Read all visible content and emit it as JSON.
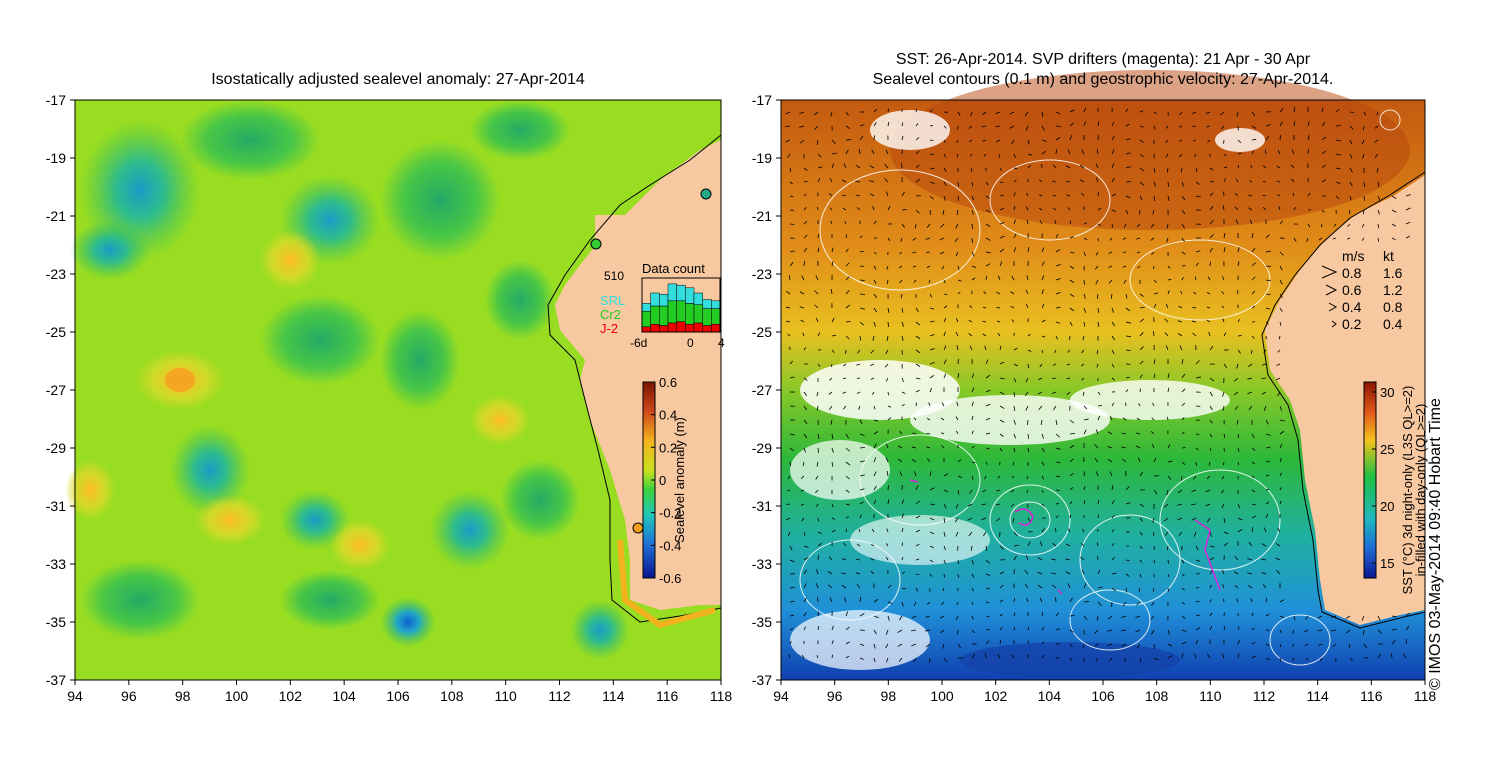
{
  "left_panel": {
    "title": "Isostatically adjusted sealevel anomaly: 27-Apr-2014",
    "x_ticks": [
      "94",
      "96",
      "98",
      "100",
      "102",
      "104",
      "106",
      "108",
      "110",
      "112",
      "114",
      "116",
      "118"
    ],
    "y_ticks": [
      "-17",
      "-19",
      "-21",
      "-23",
      "-25",
      "-27",
      "-29",
      "-31",
      "-33",
      "-35",
      "-37"
    ],
    "colorbar": {
      "label": "Sealevel anomaly (m)",
      "ticks": [
        "0.6",
        "0.4",
        "0.2",
        "0",
        "-0.2",
        "-0.4",
        "-0.6"
      ]
    },
    "data_count": {
      "title": "Data count",
      "max_label": "510",
      "legend": [
        "SRL",
        "Cr2",
        "J-2"
      ],
      "x_ticks": [
        "-6d",
        "0",
        "4"
      ],
      "colors": {
        "SRL": "#33dddd",
        "Cr2": "#22cc22",
        "J-2": "#ee0000"
      },
      "bars": {
        "SRL": [
          6,
          10,
          9,
          13,
          12,
          12,
          9,
          7,
          6
        ],
        "Cr2": [
          12,
          14,
          15,
          17,
          16,
          16,
          14,
          13,
          12
        ],
        "J-2": [
          4,
          6,
          5,
          7,
          8,
          6,
          7,
          5,
          6
        ]
      }
    }
  },
  "right_panel": {
    "title_line1": "SST: 26-Apr-2014. SVP drifters (magenta): 21 Apr - 30 Apr",
    "title_line2": "Sealevel contours (0.1 m) and geostrophic velocity: 27-Apr-2014.",
    "x_ticks": [
      "94",
      "96",
      "98",
      "100",
      "102",
      "104",
      "106",
      "108",
      "110",
      "112",
      "114",
      "116",
      "118"
    ],
    "y_ticks": [
      "-17",
      "-19",
      "-21",
      "-23",
      "-25",
      "-27",
      "-29",
      "-31",
      "-33",
      "-35",
      "-37"
    ],
    "speed_legend": {
      "header_ms": "m/s",
      "header_kt": "kt",
      "rows": [
        {
          "ms": "0.8",
          "kt": "1.6"
        },
        {
          "ms": "0.6",
          "kt": "1.2"
        },
        {
          "ms": "0.4",
          "kt": "0.8"
        },
        {
          "ms": "0.2",
          "kt": "0.4"
        }
      ]
    },
    "colorbar": {
      "label_line1": "SST (°C) 3d night-only (L3S QL>=2)",
      "label_line2": "in-filled with day-only (QL>=2)",
      "ticks": [
        "30",
        "25",
        "20",
        "15"
      ]
    }
  },
  "credit": "© IMOS 03-May-2014 09:40 Hobart Time",
  "colors": {
    "land": "#f8c8a0",
    "sla_background": "#99dd22",
    "cloud": "#ffffff",
    "drifter": "#dd22dd",
    "contour": "#ffffff"
  }
}
